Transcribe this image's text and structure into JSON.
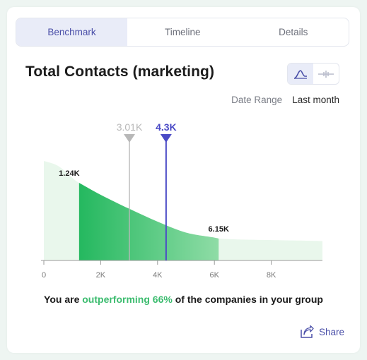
{
  "tabs": [
    {
      "label": "Benchmark",
      "active": true
    },
    {
      "label": "Timeline",
      "active": false
    },
    {
      "label": "Details",
      "active": false
    }
  ],
  "title": "Total Contacts (marketing)",
  "view_toggle": {
    "icons": [
      "distribution-curve-icon",
      "range-bar-icon"
    ],
    "active": 0
  },
  "date_range": {
    "label": "Date Range",
    "value": "Last month"
  },
  "chart_data": {
    "type": "area",
    "xlim": [
      0,
      9800
    ],
    "x_ticks": [
      0,
      2000,
      4000,
      6000,
      8000
    ],
    "x_tick_labels": [
      "0",
      "2K",
      "4K",
      "6K",
      "8K"
    ],
    "curve": {
      "x": [
        0,
        500,
        1000,
        1240,
        2000,
        3000,
        4000,
        5000,
        6000,
        6150,
        7000,
        8000,
        9000,
        9800
      ],
      "y": [
        1.0,
        0.95,
        0.83,
        0.78,
        0.66,
        0.52,
        0.39,
        0.28,
        0.23,
        0.22,
        0.21,
        0.205,
        0.2,
        0.195
      ]
    },
    "highlight_range": [
      1240,
      6150
    ],
    "range_labels": [
      {
        "x": 1240,
        "label": "1.24K"
      },
      {
        "x": 6150,
        "label": "6.15K"
      }
    ],
    "markers": [
      {
        "x": 3010,
        "label": "3.01K",
        "color": "#b8b8b8",
        "kind": "benchmark"
      },
      {
        "x": 4300,
        "label": "4.3K",
        "color": "#4b4bc6",
        "kind": "you"
      }
    ],
    "colors": {
      "light_fill": "#e9f7ec",
      "dark_fill": "#24b85f",
      "mid_fill": "#8fdca6"
    }
  },
  "summary": {
    "prefix": "You are ",
    "highlight": "outperforming 66%",
    "suffix": " of the companies in your group"
  },
  "share": {
    "label": "Share",
    "icon": "share-icon"
  }
}
